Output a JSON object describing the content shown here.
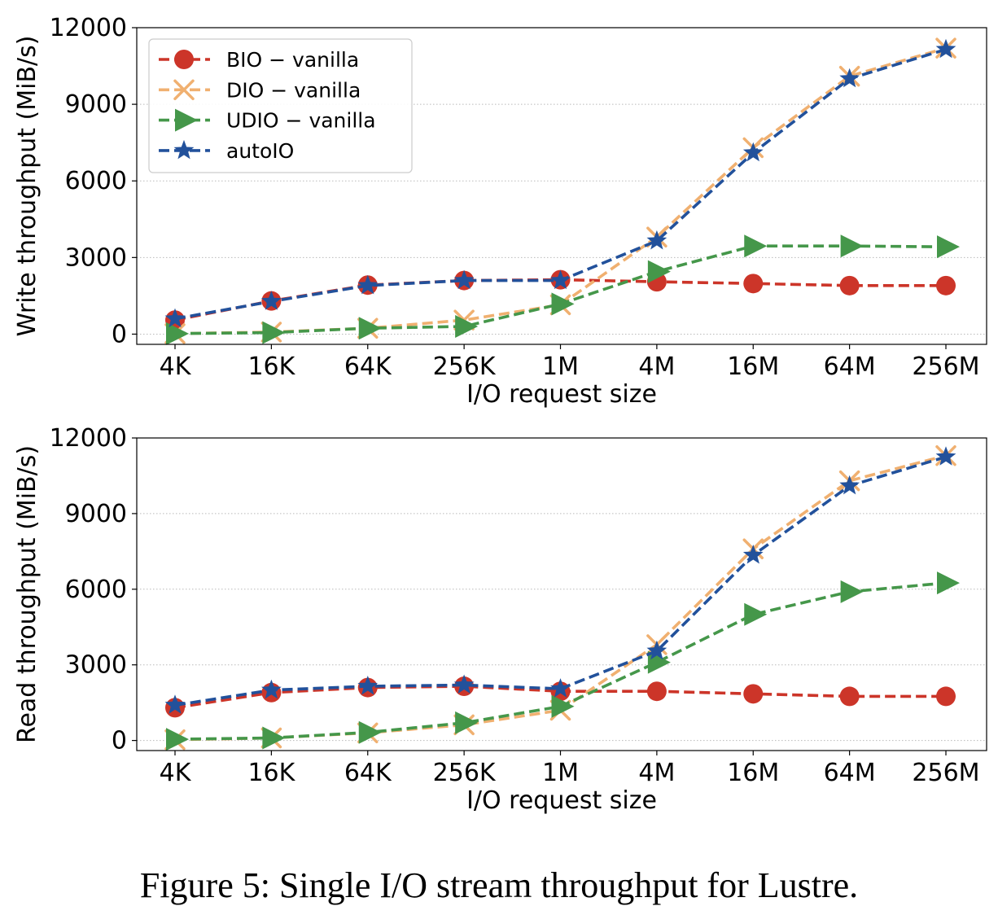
{
  "figure": {
    "caption": "Figure 5: Single I/O stream throughput for Lustre."
  },
  "colors": {
    "bio": "#cc3529",
    "dio": "#f0b070",
    "udio": "#45974a",
    "autoio": "#22519b"
  },
  "chart_data": [
    {
      "type": "line",
      "title": "",
      "xlabel": "I/O request size",
      "ylabel": "Write throughput (MiB/s)",
      "categories": [
        "4K",
        "16K",
        "64K",
        "256K",
        "1M",
        "4M",
        "16M",
        "64M",
        "256M"
      ],
      "ylim": [
        -400,
        12000
      ],
      "yticks": [
        0,
        3000,
        6000,
        9000,
        12000
      ],
      "grid": "horizontal dotted",
      "legend": {
        "position": "top-left",
        "entries": [
          "BIO − vanilla",
          "DIO − vanilla",
          "UDIO − vanilla",
          "autoIO"
        ]
      },
      "series": [
        {
          "name": "BIO − vanilla",
          "marker": "circle",
          "color": "#cc3529",
          "values": [
            550,
            1300,
            1920,
            2100,
            2130,
            2050,
            1980,
            1900,
            1900
          ]
        },
        {
          "name": "DIO − vanilla",
          "marker": "x",
          "color": "#f0b070",
          "values": [
            20,
            80,
            230,
            550,
            1150,
            3800,
            7300,
            10100,
            11200
          ]
        },
        {
          "name": "UDIO − vanilla",
          "marker": "triangle-right",
          "color": "#45974a",
          "values": [
            20,
            60,
            230,
            300,
            1180,
            2450,
            3450,
            3450,
            3420
          ]
        },
        {
          "name": "autoIO",
          "marker": "star",
          "color": "#22519b",
          "values": [
            600,
            1280,
            1900,
            2100,
            2100,
            3650,
            7100,
            10000,
            11150
          ]
        }
      ]
    },
    {
      "type": "line",
      "title": "",
      "xlabel": "I/O request size",
      "ylabel": "Read throughput (MiB/s)",
      "categories": [
        "4K",
        "16K",
        "64K",
        "256K",
        "1M",
        "4M",
        "16M",
        "64M",
        "256M"
      ],
      "ylim": [
        -400,
        12000
      ],
      "yticks": [
        0,
        3000,
        6000,
        9000,
        12000
      ],
      "grid": "horizontal dotted",
      "series": [
        {
          "name": "BIO − vanilla",
          "marker": "circle",
          "color": "#cc3529",
          "values": [
            1300,
            1900,
            2100,
            2150,
            1950,
            1950,
            1850,
            1750,
            1750
          ]
        },
        {
          "name": "DIO − vanilla",
          "marker": "x",
          "color": "#f0b070",
          "values": [
            30,
            100,
            300,
            620,
            1200,
            3800,
            7600,
            10300,
            11300
          ]
        },
        {
          "name": "UDIO − vanilla",
          "marker": "triangle-right",
          "color": "#45974a",
          "values": [
            50,
            100,
            320,
            700,
            1350,
            3100,
            5000,
            5900,
            6250
          ]
        },
        {
          "name": "autoIO",
          "marker": "star",
          "color": "#22519b",
          "values": [
            1400,
            2000,
            2150,
            2200,
            2050,
            3550,
            7350,
            10100,
            11250
          ]
        }
      ]
    }
  ]
}
